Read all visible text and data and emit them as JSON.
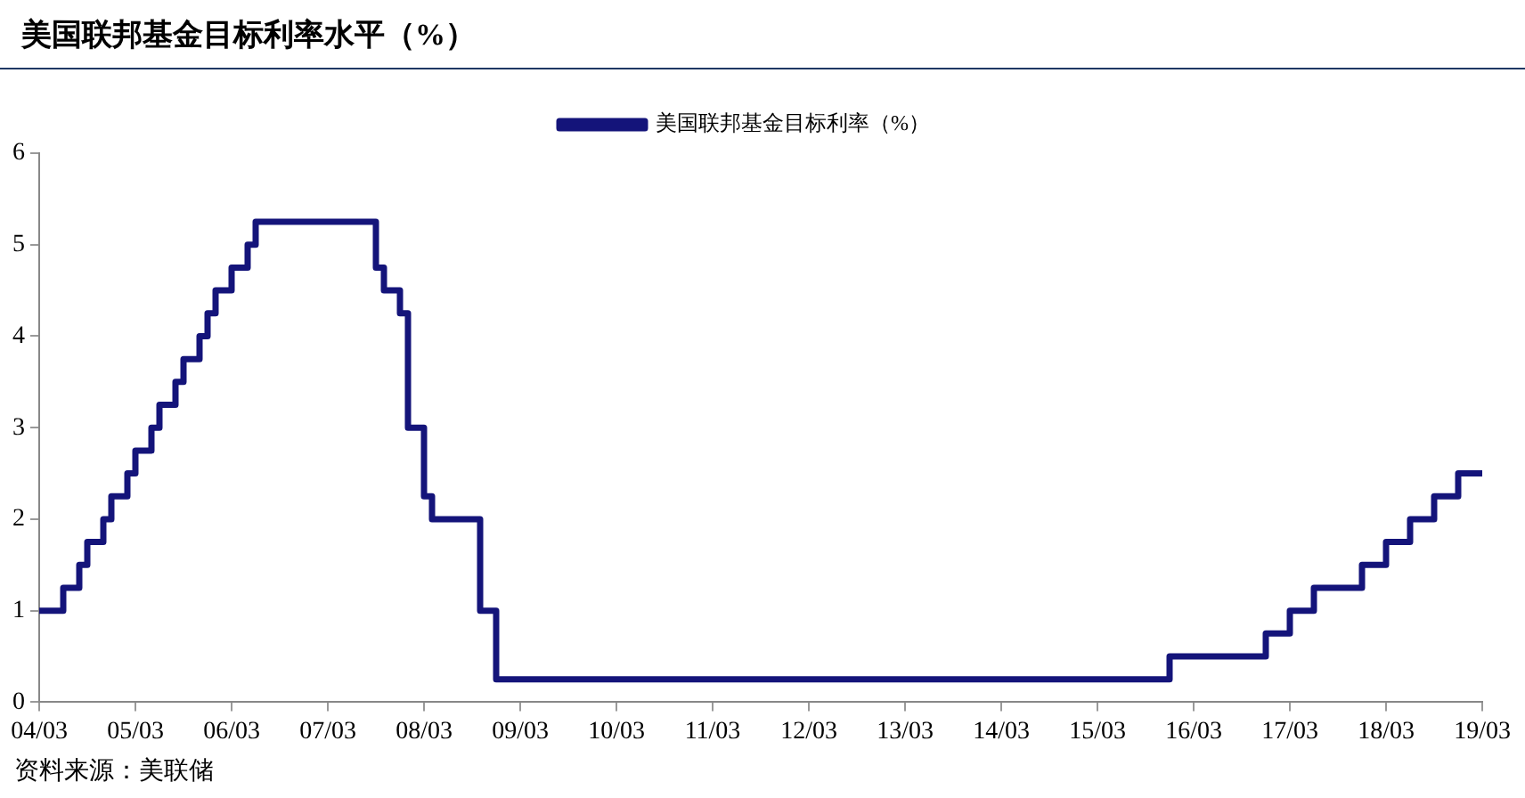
{
  "chart_data": {
    "type": "step",
    "title": "美国联邦基金目标利率水平（%）",
    "annotations": [
      "资料来源：美联储"
    ],
    "categories": [
      "04/03",
      null,
      null,
      null,
      null,
      null,
      null,
      null,
      null,
      null,
      null,
      null,
      "05/03",
      null,
      null,
      null,
      null,
      null,
      null,
      null,
      null,
      null,
      null,
      null,
      "06/03",
      null,
      null,
      null,
      null,
      null,
      null,
      null,
      null,
      null,
      null,
      null,
      "07/03",
      null,
      null,
      null,
      null,
      null,
      null,
      null,
      null,
      null,
      null,
      null,
      "08/03",
      null,
      null,
      null,
      null,
      null,
      null,
      null,
      null,
      null,
      null,
      null,
      "09/03",
      null,
      null,
      null,
      null,
      null,
      null,
      null,
      null,
      null,
      null,
      null,
      "10/03",
      null,
      null,
      null,
      null,
      null,
      null,
      null,
      null,
      null,
      null,
      null,
      "11/03",
      null,
      null,
      null,
      null,
      null,
      null,
      null,
      null,
      null,
      null,
      null,
      "12/03",
      null,
      null,
      null,
      null,
      null,
      null,
      null,
      null,
      null,
      null,
      null,
      "13/03",
      null,
      null,
      null,
      null,
      null,
      null,
      null,
      null,
      null,
      null,
      null,
      "14/03",
      null,
      null,
      null,
      null,
      null,
      null,
      null,
      null,
      null,
      null,
      null,
      "15/03",
      null,
      null,
      null,
      null,
      null,
      null,
      null,
      null,
      null,
      null,
      null,
      "16/03",
      null,
      null,
      null,
      null,
      null,
      null,
      null,
      null,
      null,
      null,
      null,
      "17/03",
      null,
      null,
      null,
      null,
      null,
      null,
      null,
      null,
      null,
      null,
      null,
      "18/03",
      null,
      null,
      null,
      null,
      null,
      null,
      null,
      null,
      null,
      null,
      null,
      "19/03"
    ],
    "series": [
      {
        "name": "美国联邦基金目标利率（%）",
        "color": "#14147a",
        "values": [
          1,
          1,
          1,
          1.25,
          1.25,
          1.5,
          1.75,
          1.75,
          2,
          2.25,
          2.25,
          2.5,
          2.75,
          2.75,
          3,
          3.25,
          3.25,
          3.5,
          3.75,
          3.75,
          4,
          4.25,
          4.5,
          4.5,
          4.75,
          4.75,
          5,
          5.25,
          5.25,
          5.25,
          5.25,
          5.25,
          5.25,
          5.25,
          5.25,
          5.25,
          5.25,
          5.25,
          5.25,
          5.25,
          5.25,
          5.25,
          4.75,
          4.5,
          4.5,
          4.25,
          3,
          3,
          2.25,
          2,
          2,
          2,
          2,
          2,
          2,
          1,
          1,
          0.25,
          0.25,
          0.25,
          0.25,
          0.25,
          0.25,
          0.25,
          0.25,
          0.25,
          0.25,
          0.25,
          0.25,
          0.25,
          0.25,
          0.25,
          0.25,
          0.25,
          0.25,
          0.25,
          0.25,
          0.25,
          0.25,
          0.25,
          0.25,
          0.25,
          0.25,
          0.25,
          0.25,
          0.25,
          0.25,
          0.25,
          0.25,
          0.25,
          0.25,
          0.25,
          0.25,
          0.25,
          0.25,
          0.25,
          0.25,
          0.25,
          0.25,
          0.25,
          0.25,
          0.25,
          0.25,
          0.25,
          0.25,
          0.25,
          0.25,
          0.25,
          0.25,
          0.25,
          0.25,
          0.25,
          0.25,
          0.25,
          0.25,
          0.25,
          0.25,
          0.25,
          0.25,
          0.25,
          0.25,
          0.25,
          0.25,
          0.25,
          0.25,
          0.25,
          0.25,
          0.25,
          0.25,
          0.25,
          0.25,
          0.25,
          0.25,
          0.25,
          0.25,
          0.25,
          0.25,
          0.25,
          0.25,
          0.25,
          0.25,
          0.5,
          0.5,
          0.5,
          0.5,
          0.5,
          0.5,
          0.5,
          0.5,
          0.5,
          0.5,
          0.5,
          0.5,
          0.75,
          0.75,
          0.75,
          1,
          1,
          1,
          1.25,
          1.25,
          1.25,
          1.25,
          1.25,
          1.25,
          1.5,
          1.5,
          1.5,
          1.75,
          1.75,
          1.75,
          2,
          2,
          2,
          2.25,
          2.25,
          2.25,
          2.5,
          2.5,
          2.5,
          2.5
        ]
      }
    ],
    "ylim": [
      0,
      6
    ],
    "yticks": [
      0,
      1,
      2,
      3,
      4,
      5,
      6
    ],
    "grid": false,
    "legend": "top"
  }
}
